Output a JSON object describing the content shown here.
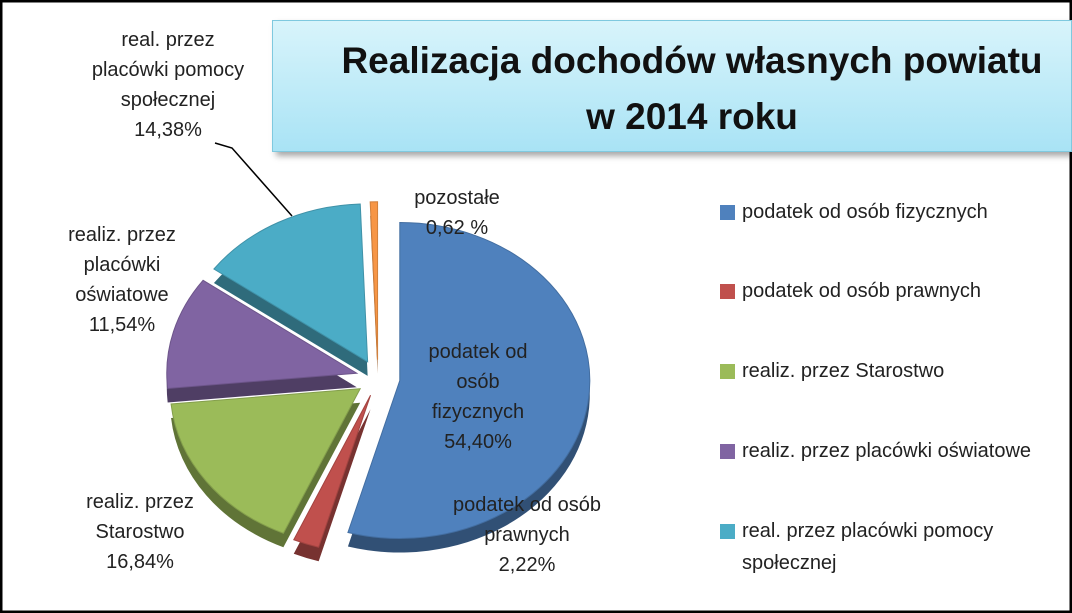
{
  "chart_data": {
    "type": "pie",
    "title": [
      "Realizacja dochodów własnych powiatu",
      "w  2014 roku"
    ],
    "categories": [
      "podatek od osób fizycznych",
      "podatek od osób prawnych",
      "realiz. przez Starostwo",
      "realiz. przez placówki oświatowe",
      "real. przez placówki pomocy społecznej",
      "pozostałe"
    ],
    "values": [
      54.4,
      2.22,
      16.84,
      11.54,
      14.38,
      0.62
    ],
    "value_labels": [
      "54,40%",
      "2,22%",
      "16,84%",
      "11,54%",
      "14,38%",
      "0,62 %"
    ],
    "colors": [
      "#4f81bd",
      "#c0504d",
      "#9bbb59",
      "#8064a2",
      "#4bacc6",
      "#f79646"
    ],
    "legend": [
      "podatek od osób fizycznych",
      "podatek od osób prawnych",
      " realiz. przez Starostwo",
      "realiz. przez placówki oświatowe",
      " real. przez placówki pomocy społecznej"
    ]
  }
}
